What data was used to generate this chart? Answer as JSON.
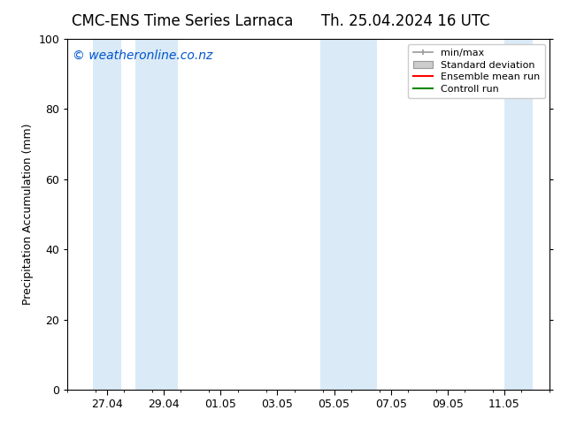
{
  "title_left": "CMC-ENS Time Series Larnaca",
  "title_right": "Th. 25.04.2024 16 UTC",
  "ylabel": "Precipitation Accumulation (mm)",
  "ylim": [
    0,
    100
  ],
  "yticks": [
    0,
    20,
    40,
    60,
    80,
    100
  ],
  "background_color": "#ffffff",
  "plot_bg_color": "#ffffff",
  "watermark": "© weatheronline.co.nz",
  "watermark_color": "#0055cc",
  "shaded_bands": [
    {
      "xmin": 26.5,
      "xmax": 27.5,
      "color": "#daeaf7"
    },
    {
      "xmin": 28.0,
      "xmax": 29.5,
      "color": "#daeaf7"
    },
    {
      "xmin": 34.5,
      "xmax": 35.5,
      "color": "#daeaf7"
    },
    {
      "xmin": 35.5,
      "xmax": 36.5,
      "color": "#daeaf7"
    },
    {
      "xmin": 41.0,
      "xmax": 42.0,
      "color": "#daeaf7"
    }
  ],
  "xtick_labels": [
    "27.04",
    "29.04",
    "01.05",
    "03.05",
    "05.05",
    "07.05",
    "09.05",
    "11.05"
  ],
  "xtick_positions": [
    27,
    29,
    31,
    33,
    35,
    37,
    39,
    41
  ],
  "xmin": 25.6,
  "xmax": 42.4,
  "legend_labels": [
    "min/max",
    "Standard deviation",
    "Ensemble mean run",
    "Controll run"
  ],
  "legend_line_colors": [
    "#999999",
    "#bbbbbb",
    "#ff0000",
    "#008800"
  ],
  "title_fontsize": 12,
  "label_fontsize": 9,
  "watermark_fontsize": 10,
  "tick_fontsize": 9
}
